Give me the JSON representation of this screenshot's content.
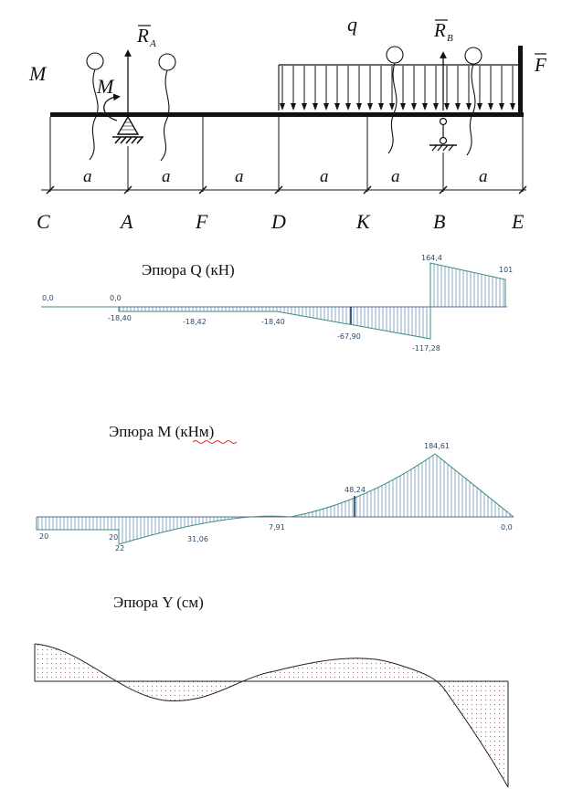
{
  "beam": {
    "points": [
      "C",
      "A",
      "F",
      "D",
      "K",
      "B",
      "E"
    ],
    "segment_label": "a",
    "moment_label": "M",
    "moment_left_label": "M",
    "load_label": "q",
    "reaction_a_symbol": "R",
    "reaction_a_sub": "A",
    "reaction_b_symbol": "R",
    "reaction_b_sub": "B",
    "force_label": "F"
  },
  "diagrams": {
    "shear": {
      "title": "Эпюра Q (кН)",
      "labels": [
        "0,0",
        "0,0",
        "-18,40",
        "-18,42",
        "-18,40",
        "-67,90",
        "-117,28",
        "164,4",
        "101"
      ]
    },
    "moment": {
      "title_main": "Эпюра М (",
      "title_unit": "кНм",
      "title_close": ")",
      "labels": [
        "20",
        "20",
        "22",
        "31,06",
        "7,91",
        "48,24",
        "184,61",
        "0,0"
      ]
    },
    "deflection": {
      "title": "Эпюра Y (см)"
    }
  },
  "colors": {
    "ink": "#111111",
    "diagram_line": "#3c8c82",
    "hatch": "#3a6fa0",
    "axis": "#1f3f66",
    "dots": "#b06a6a",
    "squiggle": "#e0303a"
  }
}
